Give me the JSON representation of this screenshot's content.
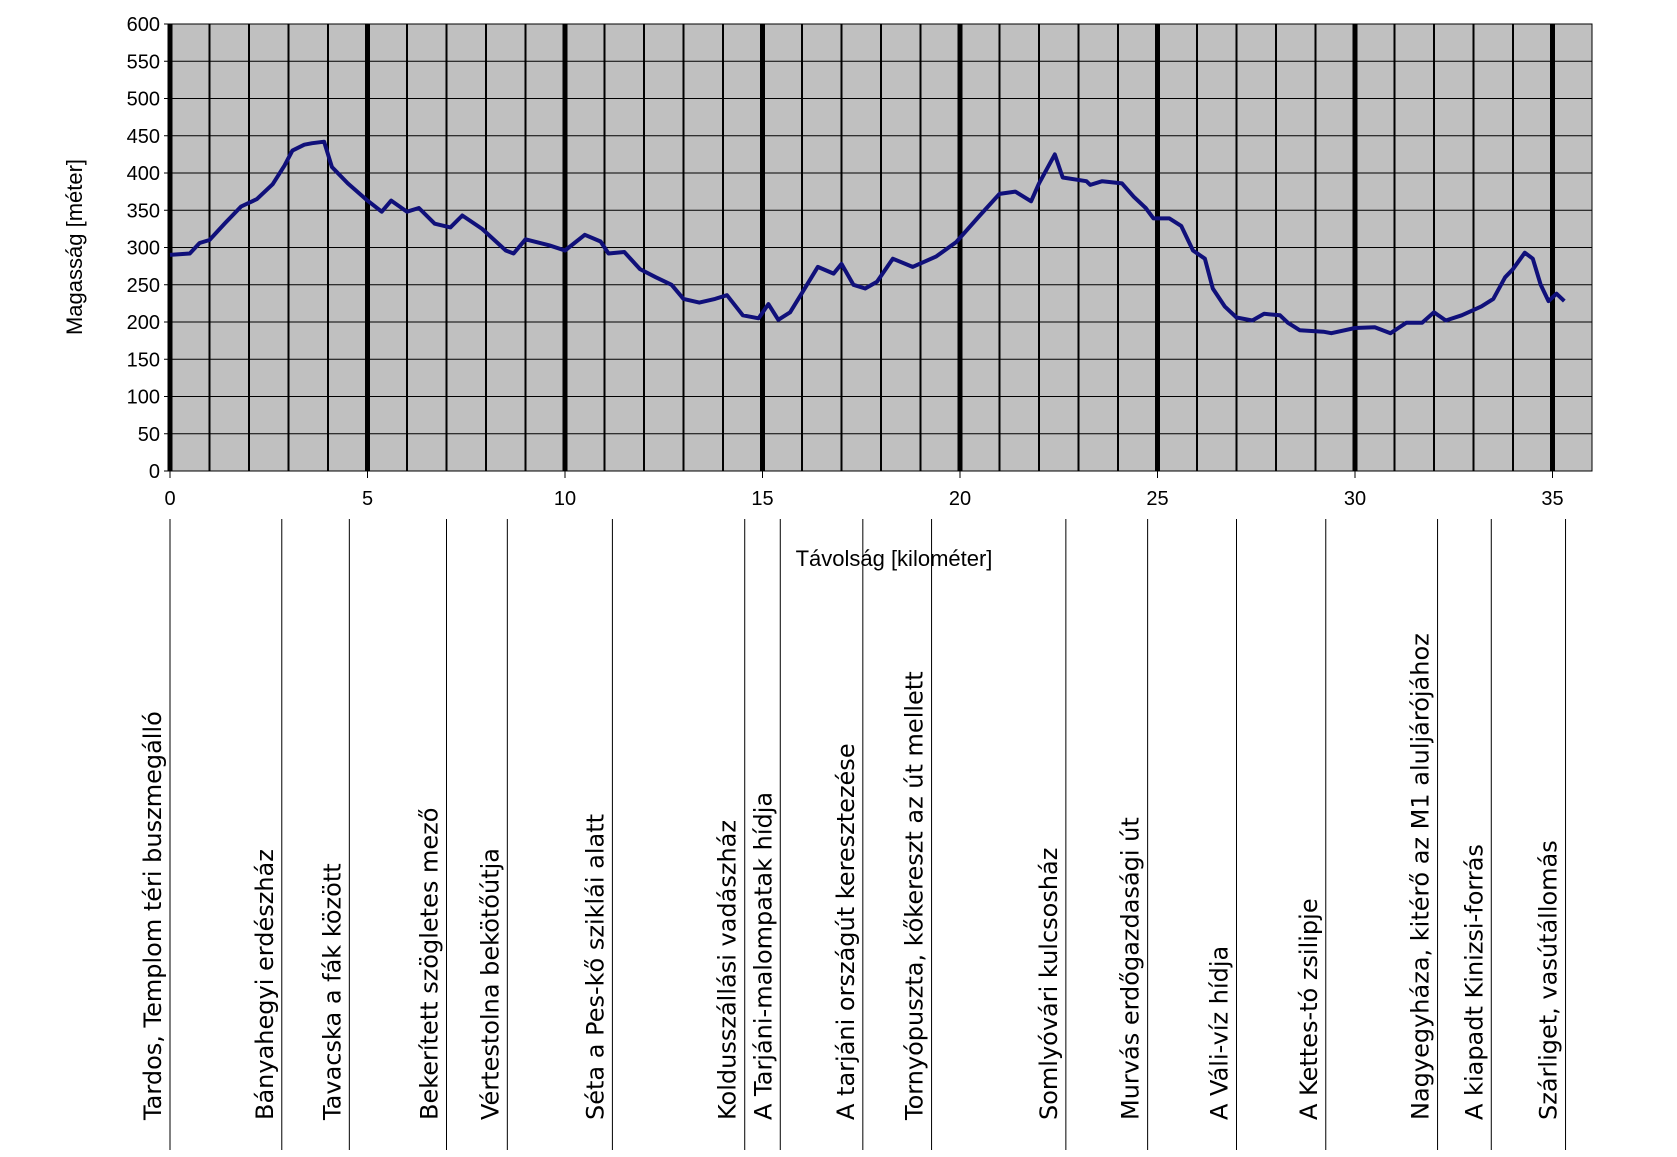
{
  "chart_data": {
    "type": "line",
    "x_label": "Távolság [kilométer]",
    "y_label": "Magasság [méter]",
    "color": "#10107a",
    "background": "#c0c0c0",
    "xlim": [
      0,
      36
    ],
    "ylim": [
      0,
      600
    ],
    "xticks": [
      0,
      5,
      10,
      15,
      20,
      25,
      30,
      35
    ],
    "xminor": [
      1,
      2,
      3,
      4,
      6,
      7,
      8,
      9,
      11,
      12,
      13,
      14,
      16,
      17,
      18,
      19,
      21,
      22,
      23,
      24,
      26,
      27,
      28,
      29,
      31,
      32,
      33,
      34
    ],
    "yticks": [
      0,
      50,
      100,
      150,
      200,
      250,
      300,
      350,
      400,
      450,
      500,
      550,
      600
    ],
    "x": [
      0,
      0.5,
      0.75,
      1.0,
      1.4,
      1.8,
      2.2,
      2.6,
      2.9,
      3.1,
      3.4,
      3.6,
      3.9,
      4.1,
      4.5,
      5.0,
      5.36,
      5.6,
      6.0,
      6.3,
      6.7,
      7.1,
      7.4,
      7.9,
      8.5,
      8.7,
      9.0,
      9.6,
      10.0,
      10.5,
      10.9,
      11.1,
      11.5,
      11.9,
      12.3,
      12.7,
      13.0,
      13.4,
      13.8,
      14.1,
      14.5,
      14.9,
      15.15,
      15.4,
      15.7,
      16.0,
      16.4,
      16.8,
      17.0,
      17.3,
      17.6,
      17.9,
      18.3,
      18.8,
      19.4,
      19.9,
      20.5,
      21.0,
      21.4,
      21.8,
      22.0,
      22.4,
      22.6,
      23.2,
      23.3,
      23.6,
      24.1,
      24.4,
      24.7,
      24.9,
      25.3,
      25.6,
      25.9,
      26.2,
      26.4,
      26.7,
      27.0,
      27.4,
      27.7,
      28.1,
      28.3,
      28.6,
      29.2,
      29.4,
      30.0,
      30.5,
      30.9,
      31.3,
      31.7,
      32.0,
      32.3,
      32.7,
      33.2,
      33.5,
      33.8,
      34.0,
      34.3,
      34.5,
      34.7,
      34.9,
      35.1,
      35.3
    ],
    "values": [
      290,
      292,
      306,
      310,
      333,
      355,
      365,
      385,
      410,
      430,
      438,
      440,
      442,
      408,
      386,
      363,
      348,
      363,
      348,
      353,
      332,
      327,
      343,
      325,
      296,
      292,
      311,
      303,
      296,
      317,
      308,
      292,
      294,
      271,
      260,
      250,
      231,
      226,
      231,
      236,
      209,
      205,
      224,
      203,
      213,
      239,
      274,
      265,
      278,
      250,
      245,
      254,
      285,
      274,
      288,
      307,
      343,
      372,
      375,
      362,
      386,
      425,
      394,
      389,
      384,
      389,
      386,
      368,
      353,
      339,
      339,
      329,
      296,
      285,
      245,
      221,
      206,
      202,
      211,
      209,
      199,
      189,
      187,
      185,
      192,
      193,
      185,
      199,
      199,
      213,
      202,
      209,
      221,
      231,
      260,
      271,
      293,
      285,
      250,
      228,
      238,
      228
    ],
    "waypoints": [
      {
        "name": "Tardos, Templom téri buszmegálló",
        "km": 0
      },
      {
        "name": "Bányahegyi erdészház",
        "km": 2.83
      },
      {
        "name": "Tavacska a fák között",
        "km": 4.54
      },
      {
        "name": "Bekerített szögletes mező",
        "km": 7.0
      },
      {
        "name": "Vértestolna bekötőútja",
        "km": 8.54
      },
      {
        "name": "Séta a Pes-kő sziklái alatt",
        "km": 11.2
      },
      {
        "name": "Koldusszállási vadászház",
        "km": 14.55
      },
      {
        "name": "A Tarjáni-malompatak hídja",
        "km": 15.45
      },
      {
        "name": "A tarjáni országút keresztezése",
        "km": 17.54
      },
      {
        "name": "Tornyópuszta, kőkereszt az út mellett",
        "km": 19.28
      },
      {
        "name": "Somlyóvári kulcsosház",
        "km": 22.68
      },
      {
        "name": "Murvás erdőgazdasági út",
        "km": 24.75
      },
      {
        "name": "A Váli-víz hídja",
        "km": 27.0
      },
      {
        "name": "A Kettes-tó zsilipje",
        "km": 29.26
      },
      {
        "name": "Nagyegyháza, kitérő az M1 aluljárójához",
        "km": 32.09
      },
      {
        "name": "A kiapadt Kinizsi-forrás",
        "km": 33.45
      },
      {
        "name": "Szárliget, vasútállomás",
        "km": 35.33
      }
    ]
  }
}
